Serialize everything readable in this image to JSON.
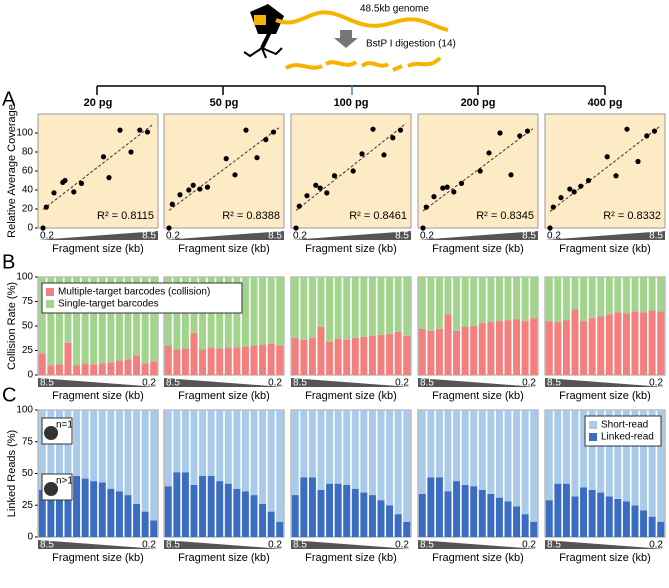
{
  "diagram": {
    "genome": "48.5kb genome",
    "digestion": "BstP I digestion (14)"
  },
  "chart_data": [
    {
      "type": "scatter",
      "panel_label": "A",
      "y_label": "Relative Average Coverage",
      "x_label": "Fragment size (kb)",
      "x_start_label": 0.2,
      "x_end_label": 8.5,
      "xlim": [
        0,
        10
      ],
      "ylim": [
        0,
        120
      ],
      "yticks": [
        0,
        20,
        40,
        60,
        80,
        100
      ],
      "color": "#000000",
      "background": "#fdebc6",
      "panels": [
        {
          "title": "20 pg",
          "r2": "R² = 0.8115",
          "x": [
            0,
            0.3,
            1,
            1.8,
            2,
            2.8,
            3.5,
            5.5,
            6,
            7,
            8,
            8.8,
            9.5
          ],
          "y": [
            0,
            22,
            37,
            48,
            50,
            38,
            47,
            75,
            53,
            103,
            80,
            103,
            101
          ]
        },
        {
          "title": "50 pg",
          "r2": "R² = 0.8388",
          "x": [
            0,
            0.3,
            1,
            1.8,
            2.2,
            2.8,
            3.5,
            5.2,
            6,
            7,
            8,
            8.8,
            9.5
          ],
          "y": [
            0,
            25,
            35,
            40,
            45,
            41,
            43,
            73,
            56,
            103,
            74,
            93,
            101
          ]
        },
        {
          "title": "100 pg",
          "r2": "R² = 0.8461",
          "x": [
            0,
            0.3,
            1,
            1.8,
            2.2,
            2.8,
            3.5,
            5.2,
            6,
            7,
            8,
            8.8,
            9.5
          ],
          "y": [
            0,
            23,
            34,
            45,
            42,
            37,
            55,
            60,
            78,
            104,
            77,
            95,
            103
          ]
        },
        {
          "title": "200 pg",
          "r2": "R² = 0.8345",
          "x": [
            0,
            0.3,
            1,
            1.8,
            2.2,
            2.8,
            3.5,
            5.2,
            6,
            7,
            8,
            8.8,
            9.5
          ],
          "y": [
            0,
            22,
            33,
            42,
            43,
            38,
            47,
            60,
            79,
            100,
            56,
            97,
            102
          ]
        },
        {
          "title": "400 pg",
          "r2": "R² = 0.8332",
          "x": [
            0,
            0.3,
            1,
            1.8,
            2.2,
            2.8,
            3.5,
            5.2,
            6,
            7,
            8,
            8.8,
            9.5
          ],
          "y": [
            0,
            22,
            32,
            41,
            38,
            44,
            50,
            75,
            55,
            104,
            70,
            97,
            102
          ]
        }
      ]
    },
    {
      "type": "stacked_bar",
      "panel_label": "B",
      "y_label": "Collision Rate (%)",
      "x_label": "Fragment size (kb)",
      "x_start_label": 8.5,
      "x_end_label": 0.2,
      "ylim": [
        0,
        100
      ],
      "yticks": [
        0,
        25,
        50,
        75,
        100
      ],
      "legend": "top-left",
      "series": [
        {
          "name": "Multiple-target barcodes (collision)",
          "color": "#f47f7f"
        },
        {
          "name": "Single-target barcodes",
          "color": "#a3d48e"
        }
      ],
      "panels": [
        {
          "values": [
            [
              22,
              10,
              11,
              33,
              10,
              12,
              11,
              12,
              13,
              15,
              16,
              20,
              12,
              14
            ],
            [
              78,
              90,
              89,
              67,
              90,
              88,
              89,
              88,
              87,
              85,
              84,
              80,
              88,
              86
            ]
          ]
        },
        {
          "values": [
            [
              30,
              26,
              27,
              43,
              26,
              28,
              27,
              28,
              28,
              29,
              30,
              31,
              32,
              30
            ],
            [
              70,
              74,
              73,
              57,
              74,
              72,
              73,
              72,
              72,
              71,
              70,
              69,
              68,
              70
            ]
          ]
        },
        {
          "values": [
            [
              38,
              36,
              38,
              49,
              34,
              37,
              36,
              38,
              39,
              40,
              41,
              42,
              44,
              40
            ],
            [
              62,
              64,
              62,
              51,
              66,
              63,
              64,
              62,
              61,
              60,
              59,
              58,
              56,
              60
            ]
          ]
        },
        {
          "values": [
            [
              47,
              45,
              47,
              62,
              45,
              49,
              50,
              53,
              54,
              55,
              56,
              57,
              55,
              58
            ],
            [
              53,
              55,
              53,
              38,
              55,
              51,
              50,
              47,
              46,
              45,
              44,
              43,
              45,
              42
            ]
          ]
        },
        {
          "values": [
            [
              55,
              54,
              56,
              67,
              55,
              58,
              60,
              62,
              64,
              63,
              65,
              64,
              66,
              65
            ],
            [
              45,
              46,
              44,
              33,
              45,
              42,
              40,
              38,
              36,
              37,
              35,
              36,
              34,
              35
            ]
          ]
        }
      ]
    },
    {
      "type": "stacked_bar",
      "panel_label": "C",
      "y_label": "Linked Reads (%)",
      "x_label": "Fragment size (kb)",
      "x_start_label": 8.5,
      "x_end_label": 0.2,
      "ylim": [
        0,
        100
      ],
      "yticks": [
        0,
        25,
        50,
        75,
        100
      ],
      "legend": "top-right",
      "icon_labels": [
        "n=1",
        "n>1"
      ],
      "series": [
        {
          "name": "Linked-read",
          "color": "#3a6cc1"
        },
        {
          "name": "Short-read",
          "color": "#a9cbe9"
        }
      ],
      "panels": [
        {
          "values": [
            [
              37,
              50,
              50,
              38,
              48,
              46,
              44,
              43,
              38,
              36,
              33,
              26,
              20,
              13
            ],
            [
              63,
              50,
              50,
              62,
              52,
              54,
              56,
              57,
              62,
              64,
              67,
              74,
              80,
              87
            ]
          ]
        },
        {
          "values": [
            [
              40,
              51,
              51,
              41,
              48,
              48,
              44,
              42,
              38,
              36,
              33,
              26,
              20,
              12
            ],
            [
              60,
              49,
              49,
              59,
              52,
              52,
              56,
              58,
              62,
              64,
              67,
              74,
              80,
              88
            ]
          ]
        },
        {
          "values": [
            [
              33,
              47,
              47,
              37,
              42,
              42,
              41,
              38,
              35,
              33,
              29,
              25,
              18,
              12
            ],
            [
              67,
              53,
              53,
              63,
              58,
              58,
              59,
              62,
              65,
              67,
              71,
              75,
              82,
              88
            ]
          ]
        },
        {
          "values": [
            [
              34,
              47,
              47,
              36,
              44,
              41,
              40,
              37,
              34,
              31,
              28,
              24,
              18,
              12
            ],
            [
              66,
              53,
              53,
              64,
              56,
              59,
              60,
              63,
              66,
              69,
              72,
              76,
              82,
              88
            ]
          ]
        },
        {
          "values": [
            [
              29,
              42,
              42,
              32,
              39,
              37,
              35,
              32,
              30,
              28,
              25,
              21,
              16,
              12
            ],
            [
              71,
              58,
              58,
              68,
              61,
              63,
              65,
              68,
              70,
              72,
              75,
              79,
              84,
              88
            ]
          ]
        }
      ]
    }
  ]
}
